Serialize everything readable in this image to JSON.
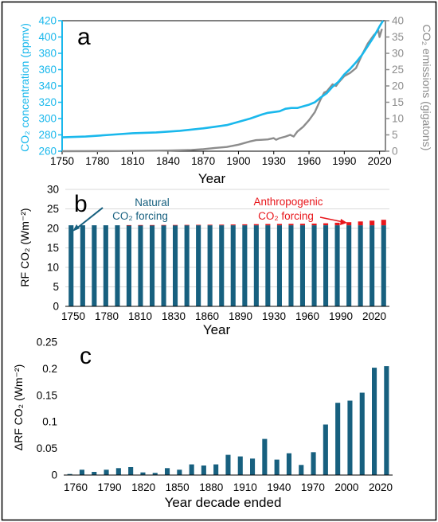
{
  "panels": {
    "a": {
      "letter": "a"
    },
    "b": {
      "letter": "b"
    },
    "c": {
      "letter": "c"
    }
  },
  "colors": {
    "concentration": "#1ab8ec",
    "emissions": "#8c8c8c",
    "natural": "#17607f",
    "anthropogenic": "#e8161b",
    "frame": "#000000",
    "gridline": "#d9d9d9"
  },
  "chart_data": [
    {
      "panel": "a",
      "type": "line",
      "xlabel": "Year",
      "ylabel_left": "CO₂ concentration (ppmv)",
      "ylabel_right": "CO₂ emissions (gigatons)",
      "xlim": [
        1750,
        2025
      ],
      "ylim_left": [
        260,
        420
      ],
      "ylim_right": [
        0,
        40
      ],
      "xticks": [
        1750,
        1780,
        1810,
        1840,
        1870,
        1900,
        1930,
        1960,
        1990,
        2020
      ],
      "yticks_left": [
        260,
        280,
        300,
        320,
        340,
        360,
        380,
        400,
        420
      ],
      "yticks_right": [
        0,
        5,
        10,
        15,
        20,
        25,
        30,
        35,
        40
      ],
      "grid": false,
      "series": [
        {
          "name": "",
          "axis": "left",
          "x": [
            1750,
            1770,
            1790,
            1810,
            1830,
            1850,
            1870,
            1880,
            1890,
            1900,
            1910,
            1920,
            1925,
            1930,
            1935,
            1940,
            1945,
            1950,
            1955,
            1960,
            1965,
            1970,
            1975,
            1980,
            1985,
            1990,
            1995,
            2000,
            2005,
            2010,
            2015,
            2020,
            2023
          ],
          "y": [
            277,
            278,
            280,
            282,
            283,
            285,
            288,
            290,
            292,
            296,
            300,
            305,
            307,
            308,
            309,
            312,
            313,
            313,
            315,
            317,
            320,
            326,
            331,
            339,
            345,
            354,
            361,
            369,
            378,
            389,
            400,
            413,
            420
          ]
        },
        {
          "name": "",
          "axis": "right",
          "x": [
            1750,
            1800,
            1840,
            1860,
            1870,
            1880,
            1890,
            1900,
            1910,
            1915,
            1920,
            1925,
            1930,
            1932,
            1935,
            1940,
            1944,
            1947,
            1950,
            1955,
            1960,
            1965,
            1970,
            1973,
            1975,
            1980,
            1983,
            1985,
            1990,
            1995,
            2000,
            2005,
            2010,
            2015,
            2019,
            2020,
            2022
          ],
          "y": [
            0.01,
            0.05,
            0.2,
            0.4,
            0.6,
            1.0,
            1.3,
            2.0,
            3.0,
            3.4,
            3.5,
            3.6,
            4.0,
            3.5,
            4.0,
            4.5,
            5.0,
            4.5,
            6.0,
            7.5,
            9.5,
            12.0,
            16.0,
            18.0,
            18.3,
            20.5,
            20.0,
            21.0,
            23.0,
            24.0,
            25.5,
            29.5,
            33.0,
            35.5,
            37.0,
            35.0,
            37.5
          ]
        }
      ]
    },
    {
      "panel": "b",
      "type": "bar",
      "stacked": true,
      "xlabel": "Year",
      "ylabel": "RF CO₂ (Wm⁻²)",
      "ylim": [
        0,
        30
      ],
      "yticks": [
        0,
        5,
        10,
        15,
        20,
        25,
        30
      ],
      "xtick_labels": [
        "1750",
        "1780",
        "1810",
        "1830",
        "1860",
        "1890",
        "1930",
        "1960",
        "1990",
        "2020"
      ],
      "grid": true,
      "categories": [
        1750,
        1760,
        1770,
        1780,
        1790,
        1800,
        1810,
        1820,
        1830,
        1840,
        1850,
        1860,
        1870,
        1880,
        1890,
        1900,
        1910,
        1920,
        1930,
        1940,
        1950,
        1960,
        1970,
        1980,
        1990,
        2000,
        2010,
        2020
      ],
      "series": [
        {
          "name": "",
          "values": [
            20.8,
            20.8,
            20.8,
            20.8,
            20.8,
            20.8,
            20.8,
            20.8,
            20.8,
            20.8,
            20.8,
            20.8,
            20.8,
            20.8,
            20.8,
            20.8,
            20.8,
            20.8,
            20.8,
            20.8,
            20.8,
            20.8,
            20.8,
            20.8,
            20.8,
            20.8,
            20.8,
            20.8
          ]
        },
        {
          "name": "",
          "values": [
            0,
            0,
            0,
            0,
            0,
            0.03,
            0.05,
            0.06,
            0.07,
            0.08,
            0.1,
            0.12,
            0.14,
            0.16,
            0.2,
            0.25,
            0.28,
            0.32,
            0.35,
            0.36,
            0.38,
            0.42,
            0.5,
            0.65,
            0.8,
            0.97,
            1.18,
            1.4
          ]
        }
      ],
      "annotations": [
        {
          "text": "Natural",
          "text2": "CO₂ forcing",
          "color": "natural"
        },
        {
          "text": "Anthropogenic",
          "text2": "CO₂ forcing",
          "color": "anthropogenic"
        }
      ]
    },
    {
      "panel": "c",
      "type": "bar",
      "xlabel": "Year decade ended",
      "ylabel": "ΔRF CO₂ (Wm⁻²)",
      "ylim": [
        0,
        0.25
      ],
      "yticks": [
        0,
        0.05,
        0.1,
        0.15,
        0.2,
        0.25
      ],
      "ytick_labels": [
        "0",
        "0.05",
        "0.1",
        "0.15",
        "0.2",
        "0.25"
      ],
      "xtick_labels": [
        "1760",
        "1790",
        "1820",
        "1850",
        "1880",
        "1910",
        "1940",
        "1970",
        "2000",
        "2020"
      ],
      "grid": false,
      "categories": [
        1760,
        1770,
        1780,
        1790,
        1800,
        1810,
        1820,
        1830,
        1840,
        1850,
        1860,
        1870,
        1880,
        1890,
        1900,
        1910,
        1920,
        1930,
        1940,
        1950,
        1960,
        1970,
        1980,
        1990,
        2000,
        2010,
        2020
      ],
      "values": [
        0.002,
        0.01,
        0.006,
        0.01,
        0.013,
        0.015,
        0.005,
        0.004,
        0.013,
        0.01,
        0.02,
        0.018,
        0.02,
        0.038,
        0.035,
        0.031,
        0.068,
        0.029,
        0.041,
        0.019,
        0.043,
        0.095,
        0.136,
        0.14,
        0.155,
        0.202,
        0.205
      ]
    }
  ]
}
